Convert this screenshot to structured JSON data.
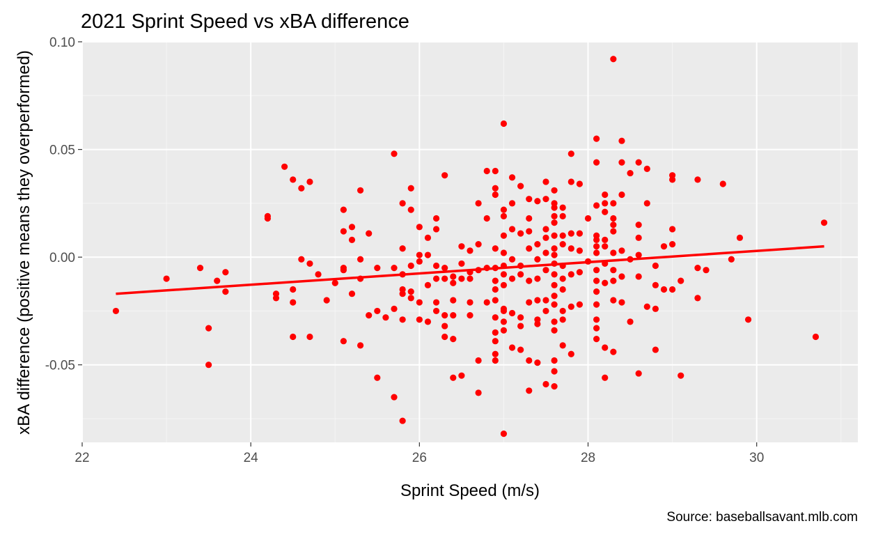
{
  "colors": {
    "panel_background": "#ebebeb",
    "grid_major": "#ffffff",
    "grid_minor": "#f5f5f5",
    "point": "#ff0000",
    "trend_line": "#ff0000",
    "tick_text": "#4d4d4d",
    "tick_mark": "#333333"
  },
  "chart_data": {
    "type": "scatter",
    "title": "2021 Sprint Speed vs xBA difference",
    "xlabel": "Sprint Speed (m/s)",
    "ylabel": "xBA difference (positive means they overperformed)",
    "caption": "Source: baseballsavant.mlb.com",
    "xlim": [
      22,
      31.2
    ],
    "ylim": [
      -0.086,
      0.1
    ],
    "x_ticks": [
      22,
      24,
      26,
      28,
      30
    ],
    "x_tick_labels": [
      "22",
      "24",
      "26",
      "28",
      "30"
    ],
    "y_ticks": [
      -0.05,
      0.0,
      0.05,
      0.1
    ],
    "y_tick_labels": [
      "-0.05",
      "0.00",
      "0.05",
      "0.10"
    ],
    "grid": true,
    "legend": "none",
    "trend_line": {
      "x": [
        22.4,
        30.8
      ],
      "y": [
        -0.017,
        0.005
      ]
    },
    "points": [
      [
        22.4,
        -0.025
      ],
      [
        23.0,
        -0.01
      ],
      [
        23.4,
        -0.005
      ],
      [
        23.5,
        -0.033
      ],
      [
        23.5,
        -0.05
      ],
      [
        23.6,
        -0.011
      ],
      [
        23.7,
        -0.007
      ],
      [
        23.7,
        -0.016
      ],
      [
        24.2,
        0.019
      ],
      [
        24.2,
        0.018
      ],
      [
        24.3,
        -0.017
      ],
      [
        24.3,
        -0.019
      ],
      [
        24.4,
        0.042
      ],
      [
        24.5,
        0.036
      ],
      [
        24.5,
        -0.015
      ],
      [
        24.5,
        -0.021
      ],
      [
        24.5,
        -0.037
      ],
      [
        24.6,
        0.032
      ],
      [
        24.6,
        -0.001
      ],
      [
        24.7,
        0.035
      ],
      [
        24.7,
        -0.003
      ],
      [
        24.7,
        -0.037
      ],
      [
        24.8,
        -0.008
      ],
      [
        24.9,
        -0.02
      ],
      [
        25.0,
        -0.012
      ],
      [
        25.1,
        0.022
      ],
      [
        25.1,
        0.012
      ],
      [
        25.1,
        -0.005
      ],
      [
        25.1,
        -0.006
      ],
      [
        25.1,
        -0.039
      ],
      [
        25.2,
        0.014
      ],
      [
        25.2,
        0.008
      ],
      [
        25.2,
        -0.017
      ],
      [
        25.3,
        0.031
      ],
      [
        25.3,
        -0.001
      ],
      [
        25.3,
        -0.01
      ],
      [
        25.3,
        -0.041
      ],
      [
        25.4,
        0.011
      ],
      [
        25.4,
        -0.027
      ],
      [
        25.5,
        -0.005
      ],
      [
        25.5,
        -0.025
      ],
      [
        25.5,
        -0.056
      ],
      [
        25.6,
        -0.028
      ],
      [
        25.7,
        0.048
      ],
      [
        25.7,
        -0.005
      ],
      [
        25.7,
        -0.024
      ],
      [
        25.7,
        -0.065
      ],
      [
        25.8,
        0.025
      ],
      [
        25.8,
        0.004
      ],
      [
        25.8,
        -0.008
      ],
      [
        25.8,
        -0.015
      ],
      [
        25.8,
        -0.017
      ],
      [
        25.8,
        -0.029
      ],
      [
        25.8,
        -0.076
      ],
      [
        25.9,
        0.032
      ],
      [
        25.9,
        0.022
      ],
      [
        25.9,
        -0.004
      ],
      [
        25.9,
        -0.016
      ],
      [
        25.9,
        -0.019
      ],
      [
        26.0,
        0.014
      ],
      [
        26.0,
        0.001
      ],
      [
        26.0,
        -0.002
      ],
      [
        26.0,
        -0.021
      ],
      [
        26.0,
        -0.029
      ],
      [
        26.1,
        0.009
      ],
      [
        26.1,
        0.001
      ],
      [
        26.1,
        -0.013
      ],
      [
        26.1,
        -0.03
      ],
      [
        26.2,
        0.018
      ],
      [
        26.2,
        0.013
      ],
      [
        26.2,
        -0.004
      ],
      [
        26.2,
        -0.01
      ],
      [
        26.2,
        -0.021
      ],
      [
        26.2,
        -0.025
      ],
      [
        26.3,
        0.038
      ],
      [
        26.3,
        -0.005
      ],
      [
        26.3,
        -0.01
      ],
      [
        26.3,
        -0.027
      ],
      [
        26.3,
        -0.032
      ],
      [
        26.3,
        -0.037
      ],
      [
        26.4,
        -0.009
      ],
      [
        26.4,
        -0.012
      ],
      [
        26.4,
        -0.02
      ],
      [
        26.4,
        -0.027
      ],
      [
        26.4,
        -0.038
      ],
      [
        26.4,
        -0.056
      ],
      [
        26.5,
        0.005
      ],
      [
        26.5,
        -0.003
      ],
      [
        26.5,
        -0.01
      ],
      [
        26.5,
        -0.055
      ],
      [
        26.6,
        0.003
      ],
      [
        26.6,
        -0.007
      ],
      [
        26.6,
        -0.01
      ],
      [
        26.6,
        -0.021
      ],
      [
        26.6,
        -0.027
      ],
      [
        26.7,
        0.025
      ],
      [
        26.7,
        0.006
      ],
      [
        26.7,
        -0.006
      ],
      [
        26.7,
        -0.048
      ],
      [
        26.7,
        -0.063
      ],
      [
        26.8,
        0.04
      ],
      [
        26.8,
        0.018
      ],
      [
        26.8,
        -0.005
      ],
      [
        26.8,
        -0.021
      ],
      [
        26.9,
        0.04
      ],
      [
        26.9,
        0.032
      ],
      [
        26.9,
        0.029
      ],
      [
        26.9,
        0.004
      ],
      [
        26.9,
        -0.005
      ],
      [
        26.9,
        -0.011
      ],
      [
        26.9,
        -0.015
      ],
      [
        26.9,
        -0.02
      ],
      [
        26.9,
        -0.028
      ],
      [
        26.9,
        -0.035
      ],
      [
        26.9,
        -0.039
      ],
      [
        26.9,
        -0.045
      ],
      [
        26.9,
        -0.048
      ],
      [
        27.0,
        0.062
      ],
      [
        27.0,
        0.022
      ],
      [
        27.0,
        0.019
      ],
      [
        27.0,
        0.01
      ],
      [
        27.0,
        0.002
      ],
      [
        27.0,
        -0.004
      ],
      [
        27.0,
        -0.008
      ],
      [
        27.0,
        -0.013
      ],
      [
        27.0,
        -0.024
      ],
      [
        27.0,
        -0.025
      ],
      [
        27.0,
        -0.03
      ],
      [
        27.0,
        -0.034
      ],
      [
        27.0,
        -0.082
      ],
      [
        27.1,
        0.037
      ],
      [
        27.1,
        0.025
      ],
      [
        27.1,
        0.013
      ],
      [
        27.1,
        -0.001
      ],
      [
        27.1,
        -0.01
      ],
      [
        27.1,
        -0.026
      ],
      [
        27.1,
        -0.042
      ],
      [
        27.2,
        0.033
      ],
      [
        27.2,
        0.011
      ],
      [
        27.2,
        -0.004
      ],
      [
        27.2,
        -0.008
      ],
      [
        27.2,
        -0.028
      ],
      [
        27.2,
        -0.032
      ],
      [
        27.2,
        -0.043
      ],
      [
        27.3,
        0.027
      ],
      [
        27.3,
        0.018
      ],
      [
        27.3,
        0.012
      ],
      [
        27.3,
        0.004
      ],
      [
        27.3,
        -0.011
      ],
      [
        27.3,
        -0.021
      ],
      [
        27.3,
        -0.048
      ],
      [
        27.3,
        -0.062
      ],
      [
        27.4,
        0.026
      ],
      [
        27.4,
        0.006
      ],
      [
        27.4,
        -0.001
      ],
      [
        27.4,
        -0.01
      ],
      [
        27.4,
        -0.02
      ],
      [
        27.4,
        -0.029
      ],
      [
        27.4,
        -0.031
      ],
      [
        27.4,
        -0.049
      ],
      [
        27.5,
        0.035
      ],
      [
        27.5,
        0.027
      ],
      [
        27.5,
        0.013
      ],
      [
        27.5,
        0.009
      ],
      [
        27.5,
        0.002
      ],
      [
        27.5,
        -0.006
      ],
      [
        27.5,
        -0.02
      ],
      [
        27.5,
        -0.025
      ],
      [
        27.5,
        -0.059
      ],
      [
        27.6,
        0.031
      ],
      [
        27.6,
        0.025
      ],
      [
        27.6,
        0.023
      ],
      [
        27.6,
        0.019
      ],
      [
        27.6,
        0.016
      ],
      [
        27.6,
        0.01
      ],
      [
        27.6,
        0.004
      ],
      [
        27.6,
        0.001
      ],
      [
        27.6,
        -0.003
      ],
      [
        27.6,
        -0.008
      ],
      [
        27.6,
        -0.013
      ],
      [
        27.6,
        -0.018
      ],
      [
        27.6,
        -0.022
      ],
      [
        27.6,
        -0.03
      ],
      [
        27.6,
        -0.034
      ],
      [
        27.6,
        -0.048
      ],
      [
        27.6,
        -0.053
      ],
      [
        27.6,
        -0.06
      ],
      [
        27.7,
        0.023
      ],
      [
        27.7,
        0.019
      ],
      [
        27.7,
        0.01
      ],
      [
        27.7,
        0.006
      ],
      [
        27.7,
        -0.004
      ],
      [
        27.7,
        -0.01
      ],
      [
        27.7,
        -0.015
      ],
      [
        27.7,
        -0.025
      ],
      [
        27.7,
        -0.029
      ],
      [
        27.7,
        -0.041
      ],
      [
        27.8,
        0.048
      ],
      [
        27.8,
        0.035
      ],
      [
        27.8,
        0.011
      ],
      [
        27.8,
        0.004
      ],
      [
        27.8,
        -0.008
      ],
      [
        27.8,
        -0.023
      ],
      [
        27.8,
        -0.045
      ],
      [
        27.9,
        0.034
      ],
      [
        27.9,
        0.011
      ],
      [
        27.9,
        0.003
      ],
      [
        27.9,
        -0.007
      ],
      [
        27.9,
        -0.022
      ],
      [
        28.0,
        0.018
      ],
      [
        28.0,
        -0.002
      ],
      [
        28.1,
        0.055
      ],
      [
        28.1,
        0.044
      ],
      [
        28.1,
        0.024
      ],
      [
        28.1,
        0.01
      ],
      [
        28.1,
        0.008
      ],
      [
        28.1,
        0.005
      ],
      [
        28.1,
        0.002
      ],
      [
        28.1,
        -0.006
      ],
      [
        28.1,
        -0.011
      ],
      [
        28.1,
        -0.016
      ],
      [
        28.1,
        -0.022
      ],
      [
        28.1,
        -0.029
      ],
      [
        28.1,
        -0.033
      ],
      [
        28.1,
        -0.038
      ],
      [
        28.2,
        0.029
      ],
      [
        28.2,
        0.025
      ],
      [
        28.2,
        0.021
      ],
      [
        28.2,
        0.008
      ],
      [
        28.2,
        0.005
      ],
      [
        28.2,
        -0.003
      ],
      [
        28.2,
        -0.012
      ],
      [
        28.2,
        -0.042
      ],
      [
        28.2,
        -0.056
      ],
      [
        28.3,
        0.092
      ],
      [
        28.3,
        0.025
      ],
      [
        28.3,
        0.018
      ],
      [
        28.3,
        0.015
      ],
      [
        28.3,
        0.012
      ],
      [
        28.3,
        0.002
      ],
      [
        28.3,
        -0.006
      ],
      [
        28.3,
        -0.011
      ],
      [
        28.3,
        -0.02
      ],
      [
        28.3,
        -0.044
      ],
      [
        28.4,
        0.054
      ],
      [
        28.4,
        0.044
      ],
      [
        28.4,
        0.029
      ],
      [
        28.4,
        0.003
      ],
      [
        28.4,
        -0.009
      ],
      [
        28.4,
        -0.021
      ],
      [
        28.5,
        0.039
      ],
      [
        28.5,
        -0.001
      ],
      [
        28.5,
        -0.03
      ],
      [
        28.6,
        0.044
      ],
      [
        28.6,
        0.015
      ],
      [
        28.6,
        0.009
      ],
      [
        28.6,
        0.001
      ],
      [
        28.6,
        -0.009
      ],
      [
        28.6,
        -0.054
      ],
      [
        28.7,
        0.041
      ],
      [
        28.7,
        0.025
      ],
      [
        28.7,
        -0.023
      ],
      [
        28.8,
        -0.004
      ],
      [
        28.8,
        -0.013
      ],
      [
        28.8,
        -0.024
      ],
      [
        28.8,
        -0.043
      ],
      [
        28.9,
        0.005
      ],
      [
        28.9,
        -0.015
      ],
      [
        29.0,
        0.038
      ],
      [
        29.0,
        0.036
      ],
      [
        29.0,
        0.013
      ],
      [
        29.0,
        0.006
      ],
      [
        29.0,
        -0.015
      ],
      [
        29.1,
        -0.011
      ],
      [
        29.1,
        -0.055
      ],
      [
        29.3,
        0.036
      ],
      [
        29.3,
        -0.005
      ],
      [
        29.3,
        -0.019
      ],
      [
        29.4,
        -0.006
      ],
      [
        29.6,
        0.034
      ],
      [
        29.7,
        -0.001
      ],
      [
        29.8,
        0.009
      ],
      [
        29.9,
        -0.029
      ],
      [
        30.7,
        -0.037
      ],
      [
        30.8,
        0.016
      ]
    ]
  }
}
